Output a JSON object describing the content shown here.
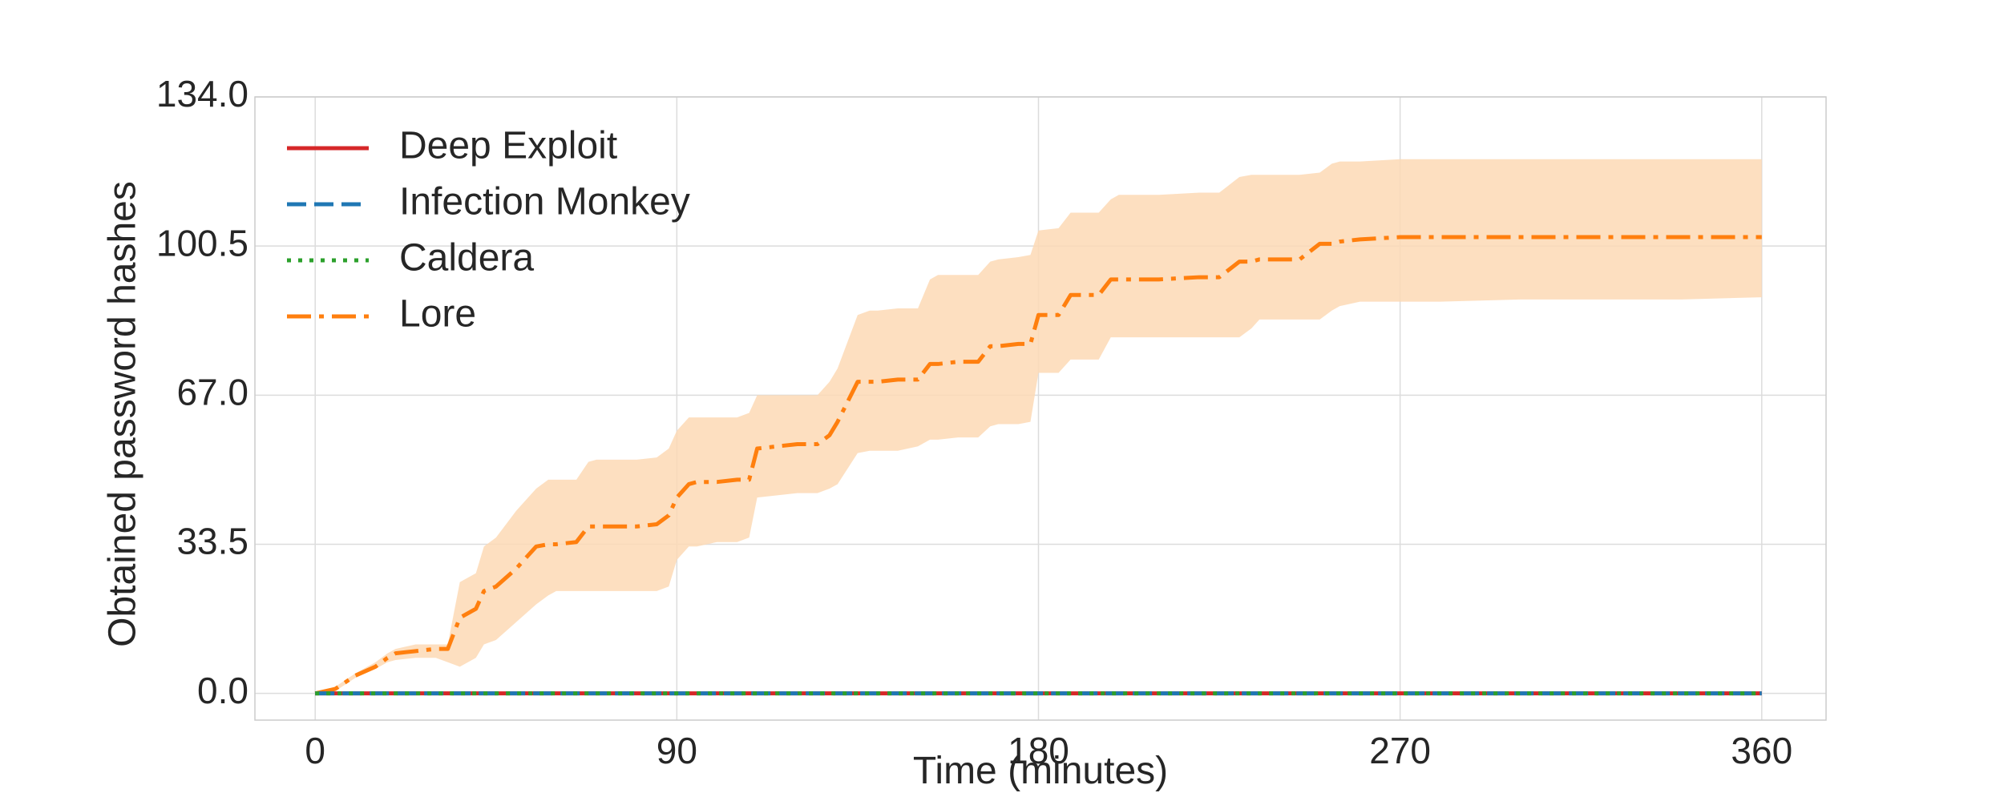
{
  "chart_data": {
    "type": "line",
    "title": "",
    "xlabel": "Time (minutes)",
    "ylabel": "Obtained password hashes",
    "xlim": [
      -15,
      376
    ],
    "ylim": [
      -6,
      134
    ],
    "xticks": [
      0,
      90,
      180,
      270,
      360
    ],
    "xtick_labels": [
      "0",
      "90",
      "180",
      "270",
      "360"
    ],
    "yticks": [
      0,
      33.5,
      67,
      100.5,
      134
    ],
    "ytick_labels": [
      "0.0",
      "33.5",
      "67.0",
      "100.5",
      "134.0"
    ],
    "grid": true,
    "legend_position": "top-left",
    "series": [
      {
        "name": "Deep Exploit",
        "color": "#d62728",
        "style": "solid",
        "x": [
          0,
          360
        ],
        "y": [
          0,
          0
        ]
      },
      {
        "name": "Infection Monkey",
        "color": "#1f77b4",
        "style": "dashed",
        "x": [
          0,
          360
        ],
        "y": [
          0,
          0
        ]
      },
      {
        "name": "Caldera",
        "color": "#2ca02c",
        "style": "dotted",
        "x": [
          0,
          360
        ],
        "y": [
          0,
          0
        ]
      },
      {
        "name": "Lore",
        "color": "#ff7f0e",
        "band_color": "#fdd9b5",
        "style": "dashdot",
        "x": [
          0,
          5,
          10,
          15,
          18,
          20,
          25,
          30,
          33,
          36,
          40,
          42,
          45,
          50,
          55,
          58,
          60,
          65,
          68,
          70,
          75,
          80,
          85,
          88,
          90,
          93,
          95,
          100,
          105,
          108,
          110,
          115,
          120,
          125,
          128,
          130,
          135,
          138,
          140,
          145,
          150,
          153,
          155,
          160,
          165,
          168,
          170,
          175,
          178,
          180,
          185,
          188,
          190,
          195,
          198,
          200,
          210,
          220,
          225,
          230,
          233,
          235,
          240,
          245,
          250,
          253,
          255,
          260,
          270,
          280,
          300,
          320,
          340,
          360
        ],
        "y": [
          0,
          1,
          4,
          6,
          8,
          9,
          9.5,
          10,
          10,
          17,
          19,
          23,
          24,
          28,
          33,
          33.5,
          33.5,
          34,
          37.5,
          37.5,
          37.5,
          37.5,
          38,
          40,
          44,
          47,
          47.5,
          47.5,
          48,
          48,
          55,
          55.5,
          56,
          56,
          58,
          61,
          70,
          70,
          70,
          70.5,
          70.5,
          74,
          74,
          74.5,
          74.5,
          78,
          78,
          78.5,
          78.5,
          85,
          85,
          89.5,
          89.5,
          89.5,
          93,
          93,
          93,
          93.5,
          93.5,
          97,
          97,
          97.5,
          97.5,
          97.5,
          101,
          101,
          101.5,
          102,
          102.5,
          102.5,
          102.5,
          102.5,
          102.5,
          102.5
        ],
        "lower": [
          0,
          0.5,
          3.5,
          5.5,
          7,
          7.5,
          8,
          8,
          7,
          6,
          8,
          11,
          12,
          16,
          20,
          22,
          23,
          23,
          23,
          23,
          23,
          23,
          23,
          24,
          30,
          33,
          33,
          34,
          34,
          35,
          44,
          44.5,
          45,
          45,
          46,
          47,
          54,
          54.5,
          54.5,
          54.5,
          55.5,
          57,
          57,
          57.5,
          57.5,
          60,
          60.5,
          60.5,
          61,
          72,
          72,
          75,
          75,
          75,
          80,
          80,
          80,
          80,
          80,
          80,
          82,
          84,
          84,
          84,
          84,
          86,
          87,
          88,
          88,
          88,
          88.5,
          88.5,
          88.5,
          89
        ],
        "upper": [
          0,
          1.5,
          4.5,
          7,
          9,
          10,
          11,
          11,
          11,
          25,
          27,
          33,
          35,
          41,
          46,
          48,
          48,
          48,
          52,
          52.5,
          52.5,
          52.5,
          53,
          55,
          59,
          62,
          62,
          62,
          62,
          63,
          67,
          67,
          67,
          67,
          70,
          73,
          85,
          86,
          86,
          86.5,
          86.5,
          93,
          94,
          94,
          94,
          97,
          97.5,
          98,
          98.5,
          104,
          104.5,
          108,
          108,
          108,
          111,
          112,
          112,
          112.5,
          112.5,
          116,
          116.5,
          116.5,
          116.5,
          116.5,
          117,
          119,
          119.5,
          119.5,
          120,
          120,
          120,
          120,
          120,
          120
        ]
      }
    ]
  }
}
